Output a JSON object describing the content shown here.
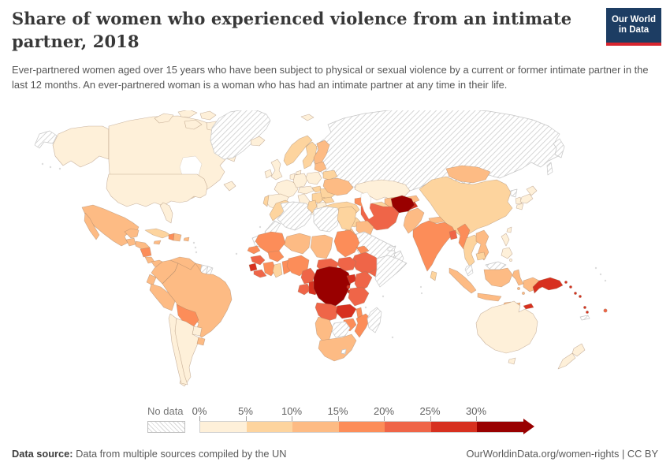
{
  "header": {
    "title": "Share of women who experienced violence from an intimate partner, 2018",
    "subtitle": "Ever-partnered women aged over 15 years who have been subject to physical or sexual violence by a current or former intimate partner in the last 12 months. An ever-partnered woman is a woman who has had an intimate partner at any time in their life.",
    "logo": {
      "line1": "Our World",
      "line2": "in Data",
      "bg_color": "#1d3d63",
      "bar_color": "#d8252e"
    }
  },
  "chart_data": {
    "type": "choropleth-world-map",
    "title": "Share of women who experienced violence from an intimate partner",
    "year": "2018",
    "unit": "%",
    "legend": {
      "no_data_label": "No data",
      "tick_labels": [
        "0%",
        "5%",
        "10%",
        "15%",
        "20%",
        "25%",
        "30%"
      ],
      "bin_colors": [
        "#fef0d9",
        "#fdd49e",
        "#fdbb84",
        "#fc8d59",
        "#ef6548",
        "#d7301f",
        "#990000"
      ],
      "open_ended_arrow": true
    },
    "regions_by_bin": {
      "0-5%": [
        "United States",
        "Canada",
        "Argentina",
        "Chile",
        "Paraguay",
        "United Kingdom",
        "Ireland",
        "France",
        "Spain",
        "Italy",
        "Greece",
        "Germany",
        "Poland",
        "Austria",
        "Iceland",
        "Kazakhstan",
        "Japan",
        "South Korea",
        "Philippines",
        "Australia",
        "New Zealand"
      ],
      "5-10%": [
        "Norway",
        "Sweden",
        "Portugal",
        "Belarus",
        "Hungary",
        "Romania",
        "Turkey",
        "Tunisia",
        "Morocco",
        "Egypt",
        "China",
        "Thailand",
        "Cambodia",
        "Sri Lanka",
        "Ghana",
        "Cuba",
        "Syria"
      ],
      "10-15%": [
        "Finland",
        "Baltic states",
        "Ukraine",
        "Mexico",
        "Central America",
        "Colombia",
        "Venezuela",
        "Ecuador",
        "Peru",
        "Brazil",
        "Guyana",
        "Dominican Republic",
        "Uzbekistan",
        "Pakistan",
        "Nepal",
        "Vietnam",
        "Laos",
        "Indonesia",
        "Mongolia",
        "Iraq",
        "Jordan",
        "Niger",
        "Chad",
        "Namibia",
        "South Africa"
      ],
      "15-20%": [
        "Bolivia",
        "Haiti",
        "Nicaragua",
        "Senegal",
        "Mali",
        "Burkina Faso",
        "Cote d'Ivoire",
        "Benin",
        "Nigeria",
        "Sudan",
        "Eritrea",
        "Mozambique",
        "Malawi",
        "Zimbabwe",
        "India",
        "Myanmar",
        "Azerbaijan"
      ],
      "20-25%": [
        "Iran",
        "Yemen",
        "Ethiopia",
        "South Sudan",
        "Kenya",
        "Tanzania",
        "Cameroon",
        "Central African Republic",
        "Guinea",
        "Liberia",
        "Gabon",
        "Angola",
        "Bangladesh",
        "Fiji"
      ],
      "25-30%": [
        "Uganda",
        "Zambia",
        "Sierra Leone",
        "Rwanda",
        "Burundi",
        "Congo",
        "Papua New Guinea",
        "Solomon Islands",
        "Timor-Leste",
        "Tajikistan",
        "Lebanon"
      ],
      "30%+": [
        "Afghanistan",
        "Democratic Republic of Congo"
      ],
      "no_data": [
        "Russia",
        "Greenland",
        "Algeria",
        "Libya",
        "Western Sahara",
        "Mauritania",
        "Somalia",
        "Madagascar",
        "Botswana",
        "Saudi Arabia",
        "Oman",
        "United Arab Emirates",
        "Malaysia",
        "North Korea",
        "Suriname",
        "New Caledonia"
      ]
    }
  },
  "footer": {
    "datasource_label": "Data source:",
    "datasource_text": " Data from multiple sources compiled by the UN",
    "link_text": "OurWorldinData.org/women-rights | CC BY"
  }
}
